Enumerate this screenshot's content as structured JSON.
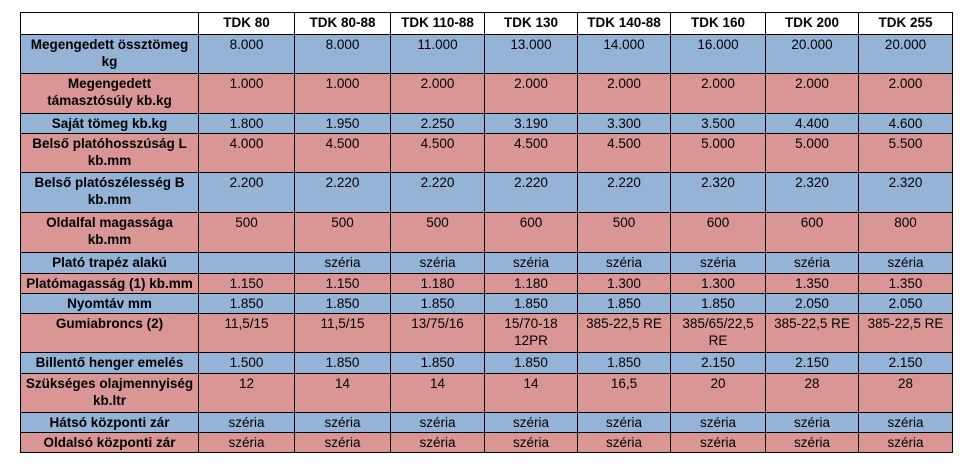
{
  "table": {
    "header": [
      "TDK 80",
      "TDK 80-88",
      "TDK 110-88",
      "TDK 130",
      "TDK 140-88",
      "TDK 160",
      "TDK 200",
      "TDK 255"
    ],
    "rows": [
      {
        "label": "Megengedett össztömeg kg",
        "cells": [
          "8.000",
          "8.000",
          "11.000",
          "13.000",
          "14.000",
          "16.000",
          "20.000",
          "20.000"
        ]
      },
      {
        "label": "Megengedett támasztósúly kb.kg",
        "cells": [
          "1.000",
          "1.000",
          "2.000",
          "2.000",
          "2.000",
          "2.000",
          "2.000",
          "2.000"
        ]
      },
      {
        "label": "Saját tömeg kb.kg",
        "cells": [
          "1.800",
          "1.950",
          "2.250",
          "3.190",
          "3.300",
          "3.500",
          "4.400",
          "4.600"
        ]
      },
      {
        "label": "Belső platóhosszúság L kb.mm",
        "cells": [
          "4.000",
          "4.500",
          "4.500",
          "4.500",
          "4.500",
          "5.000",
          "5.000",
          "5.500"
        ]
      },
      {
        "label": "Belső platószélesség B kb.mm",
        "cells": [
          "2.200",
          "2.220",
          "2.220",
          "2.220",
          "2.220",
          "2.320",
          "2.320",
          "2.320"
        ]
      },
      {
        "label": "Oldalfal magassága kb.mm",
        "cells": [
          "500",
          "500",
          "500",
          "600",
          "500",
          "600",
          "600",
          "800"
        ]
      },
      {
        "label": "Plató trapéz alakú",
        "cells": [
          null,
          "széria",
          "széria",
          "széria",
          "széria",
          "széria",
          "széria",
          "széria"
        ]
      },
      {
        "label": "Platómagasság (1) kb.mm",
        "cells": [
          "1.150",
          "1.150",
          "1.180",
          "1.180",
          "1.300",
          "1.300",
          "1.350",
          "1.350"
        ]
      },
      {
        "label": "Nyomtáv mm",
        "cells": [
          "1.850",
          "1.850",
          "1.850",
          "1.850",
          "1.850",
          "1.850",
          "2.050",
          "2.050"
        ]
      },
      {
        "label": "Gumiabroncs (2)",
        "cells": [
          "11,5/15",
          "11,5/15",
          "13/75/16",
          "15/70-18 12PR",
          "385-22,5 RE",
          "385/65/22,5 RE",
          "385-22,5 RE",
          "385-22,5 RE"
        ]
      },
      {
        "label": "Billentő henger emelés",
        "cells": [
          "1.500",
          "1.850",
          "1.850",
          "1.850",
          "1.850",
          "2.150",
          "2.150",
          "2.150"
        ]
      },
      {
        "label": "Szükséges olajmennyiség kb.ltr",
        "cells": [
          "12",
          "14",
          "14",
          "14",
          "16,5",
          "20",
          "28",
          "28"
        ]
      },
      {
        "label": "Hátsó központi zár",
        "cells": [
          "széria",
          "széria",
          "széria",
          "széria",
          "széria",
          "széria",
          "széria",
          "széria"
        ]
      },
      {
        "label": "Oldalsó központi zár",
        "cells": [
          "széria",
          "széria",
          "széria",
          "széria",
          "széria",
          "széria",
          "széria",
          "széria"
        ]
      }
    ]
  }
}
